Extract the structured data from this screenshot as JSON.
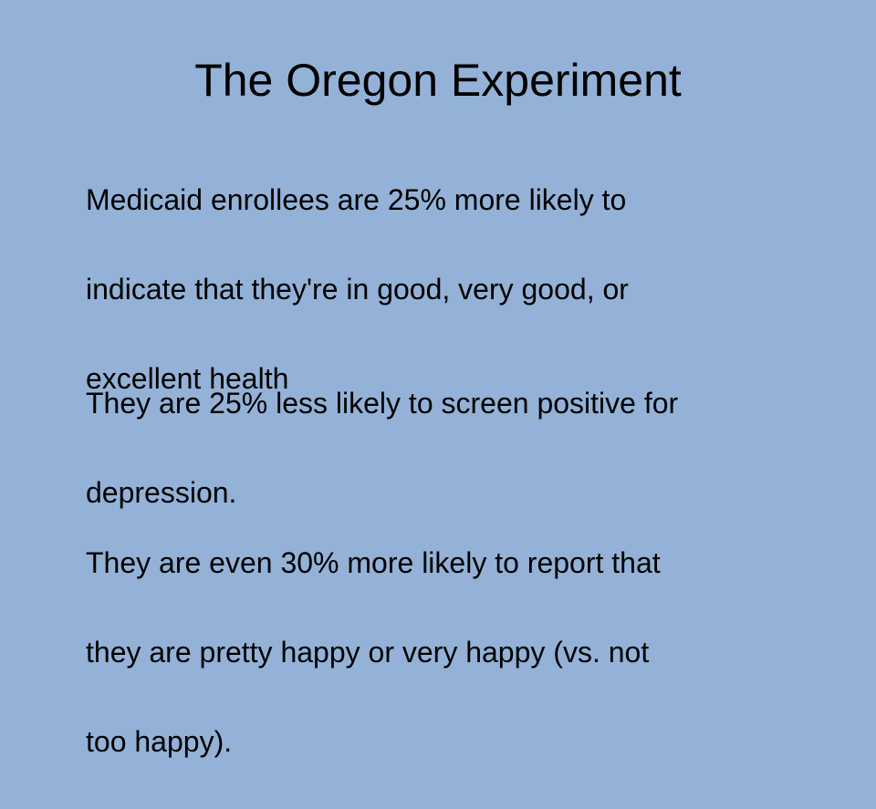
{
  "slide": {
    "title": "The Oregon Experiment",
    "paragraphs": [
      {
        "lines": [
          "  Medicaid enrollees are 25% more likely to",
          "indicate that they're in good, very good, or",
          "excellent health"
        ]
      },
      {
        "lines": [
          "  They are 25% less likely to screen positive for",
          "depression."
        ]
      },
      {
        "lines": [
          " They are even 30% more likely to report that",
          "they are pretty happy or very happy (vs. not",
          "too happy)."
        ]
      }
    ]
  }
}
